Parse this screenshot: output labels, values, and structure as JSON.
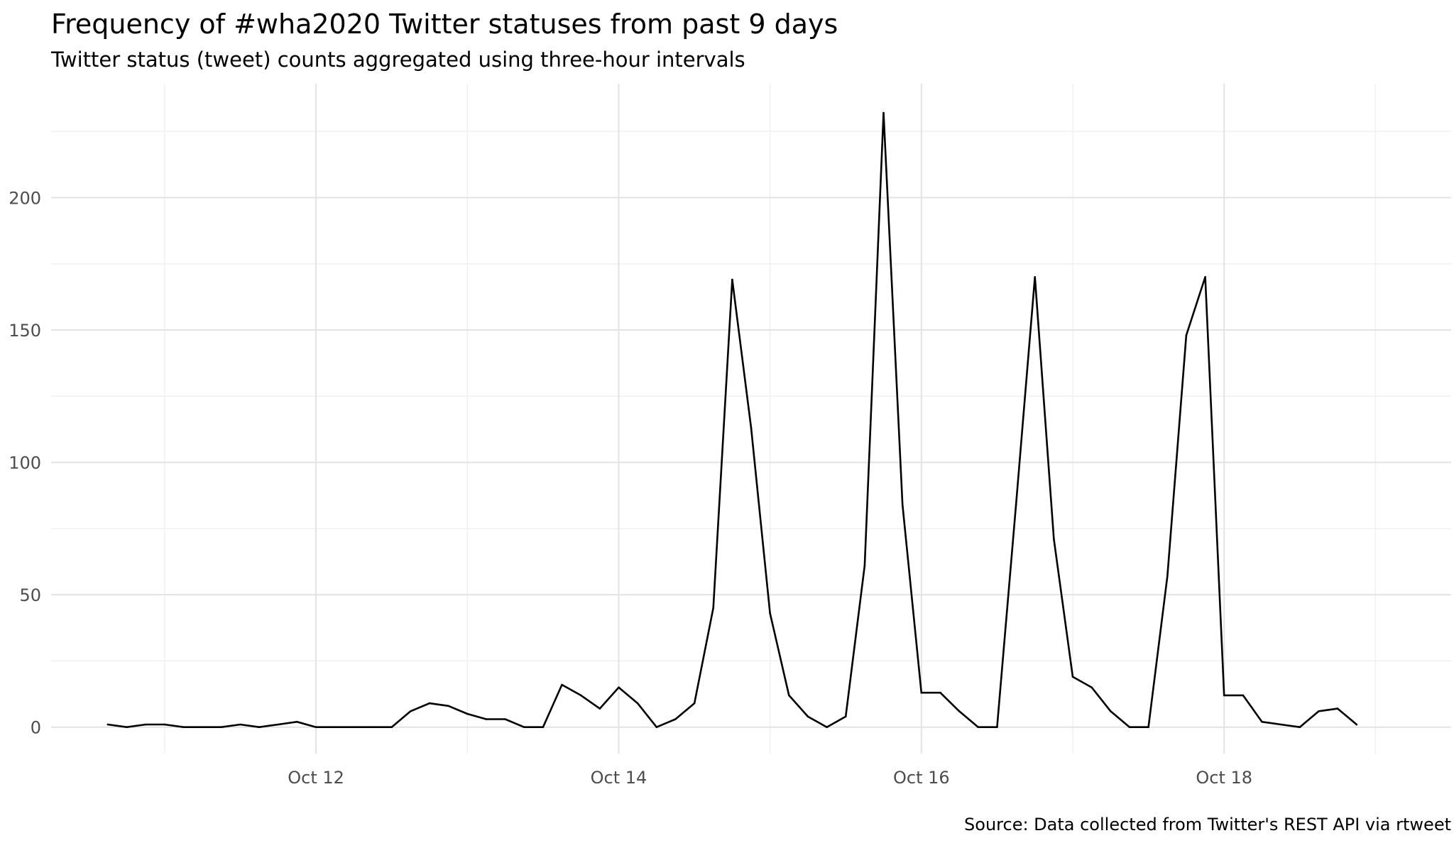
{
  "title": "Frequency of #wha2020 Twitter statuses from past 9 days",
  "subtitle": "Twitter status (tweet) counts aggregated using three-hour intervals",
  "caption": "Source: Data collected from Twitter's REST API via rtweet",
  "colors": {
    "line": "#000000",
    "grid_major": "#e3e3e3",
    "grid_minor": "#f0f0f0",
    "tick_text": "#4d4d4d"
  },
  "chart_data": {
    "type": "line",
    "title": "Frequency of #wha2020 Twitter statuses from past 9 days",
    "subtitle": "Twitter status (tweet) counts aggregated using three-hour intervals",
    "xlabel": "",
    "ylabel": "",
    "x_interval_hours": 3,
    "x_start": "2020-10-10T15:00",
    "x_tick_labels": [
      {
        "date": "2020-10-12",
        "label": "Oct 12"
      },
      {
        "date": "2020-10-14",
        "label": "Oct 14"
      },
      {
        "date": "2020-10-16",
        "label": "Oct 16"
      },
      {
        "date": "2020-10-18",
        "label": "Oct 18"
      }
    ],
    "x_range": [
      "2020-10-10T06:00",
      "2020-10-19T12:00"
    ],
    "y_ticks": [
      0,
      50,
      100,
      150,
      200
    ],
    "ylim": [
      -10,
      243
    ],
    "grid": true,
    "legend": "none",
    "series": [
      {
        "values": [
          1,
          0,
          1,
          1,
          0,
          0,
          0,
          1,
          0,
          1,
          2,
          0,
          0,
          0,
          0,
          0,
          6,
          9,
          8,
          5,
          3,
          3,
          0,
          0,
          16,
          12,
          7,
          15,
          9,
          0,
          3,
          9,
          45,
          169,
          113,
          43,
          12,
          4,
          0,
          4,
          61,
          232,
          84,
          13,
          13,
          6,
          0,
          0,
          84,
          170,
          71,
          19,
          15,
          6,
          0,
          0,
          57,
          148,
          170,
          12,
          12,
          2,
          1,
          0,
          6,
          7,
          1
        ]
      }
    ]
  }
}
